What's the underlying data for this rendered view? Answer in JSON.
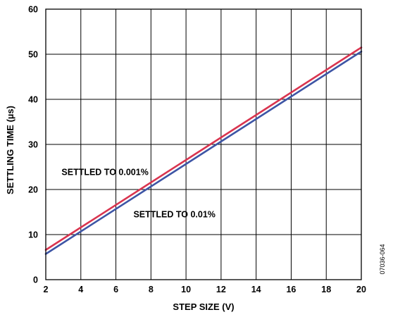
{
  "chart_data": {
    "type": "line",
    "xlabel": "STEP SIZE (V)",
    "ylabel": "SETTLING TIME (µs)",
    "xlim": [
      2,
      20
    ],
    "ylim": [
      0,
      60
    ],
    "xticks": [
      2,
      4,
      6,
      8,
      10,
      12,
      14,
      16,
      18,
      20
    ],
    "yticks": [
      0,
      10,
      20,
      30,
      40,
      50,
      60
    ],
    "xtick_labels": [
      "2",
      "4",
      "6",
      "8",
      "10",
      "12",
      "14",
      "16",
      "18",
      "20"
    ],
    "ytick_labels": [
      "0",
      "10",
      "20",
      "30",
      "40",
      "50",
      "60"
    ],
    "grid": true,
    "series": [
      {
        "name": "SETTLED TO 0.001%",
        "color": "#d9344f",
        "x": [
          2,
          20
        ],
        "y": [
          6.6,
          51.5
        ]
      },
      {
        "name": "SETTLED TO 0.01%",
        "color": "#3d55a5",
        "x": [
          2,
          20
        ],
        "y": [
          5.7,
          50.6
        ]
      }
    ],
    "annotations": [
      {
        "text": "SETTLED TO 0.001%",
        "series": 0,
        "x": 2.9,
        "y": 23.2
      },
      {
        "text": "SETTLED TO 0.01%",
        "series": 1,
        "x": 7.0,
        "y": 13.8
      }
    ],
    "figure_id": "07036-064"
  }
}
